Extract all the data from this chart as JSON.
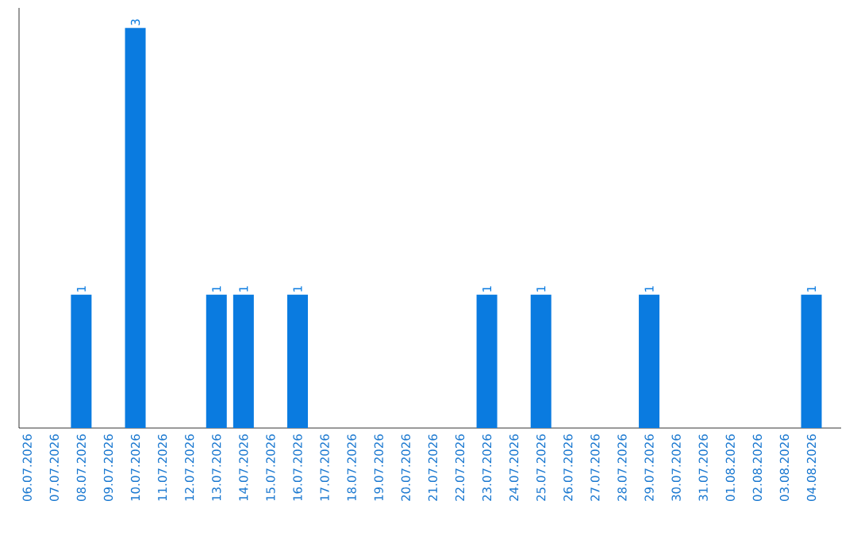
{
  "chart_data": {
    "type": "bar",
    "categories": [
      "06.07.2026",
      "07.07.2026",
      "08.07.2026",
      "09.07.2026",
      "10.07.2026",
      "11.07.2026",
      "12.07.2026",
      "13.07.2026",
      "14.07.2026",
      "15.07.2026",
      "16.07.2026",
      "17.07.2026",
      "18.07.2026",
      "19.07.2026",
      "20.07.2026",
      "21.07.2026",
      "22.07.2026",
      "23.07.2026",
      "24.07.2026",
      "25.07.2026",
      "26.07.2026",
      "27.07.2026",
      "28.07.2026",
      "29.07.2026",
      "30.07.2026",
      "31.07.2026",
      "01.08.2026",
      "02.08.2026",
      "03.08.2026",
      "04.08.2026"
    ],
    "values": [
      0,
      0,
      1,
      0,
      3,
      0,
      0,
      1,
      1,
      0,
      1,
      0,
      0,
      0,
      0,
      0,
      0,
      1,
      0,
      1,
      0,
      0,
      0,
      1,
      0,
      0,
      0,
      0,
      0,
      1
    ],
    "value_labels": [
      null,
      null,
      "1",
      null,
      "3",
      null,
      null,
      "1",
      "1",
      null,
      "1",
      null,
      null,
      null,
      null,
      null,
      null,
      "1",
      null,
      "1",
      null,
      null,
      null,
      "1",
      null,
      null,
      null,
      null,
      null,
      "1"
    ],
    "color": "#0a7be0"
  }
}
